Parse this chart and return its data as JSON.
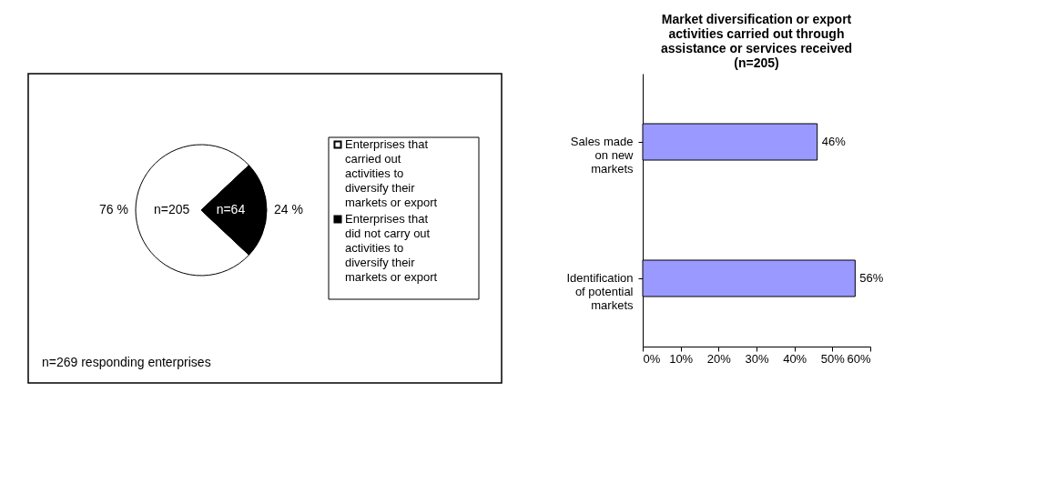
{
  "chart_data": [
    {
      "type": "pie",
      "categories": [
        "Enterprises that carried out activities to diversify their markets or export",
        "Enterprises that did not carry out activities to diversify their markets or export"
      ],
      "values": [
        76,
        24
      ],
      "colors": [
        "#ffffff",
        "#000000"
      ],
      "value_labels": [
        "76 %",
        "24 %"
      ],
      "legend": "right",
      "annotations": [
        {
          "text": "n=205",
          "x": "Enterprises that carried out activities to diversify their markets or export"
        },
        {
          "text": "n=64",
          "x": "Enterprises that did not carry out activities to diversify their markets or export"
        },
        "n=269 responding enterprises"
      ]
    },
    {
      "type": "bar",
      "orientation": "horizontal",
      "title": "Market diversification or export activities carried out through assistance or services received (n=205)",
      "categories": [
        "Sales made on new markets",
        "Identification of potential markets"
      ],
      "values": [
        46,
        56
      ],
      "color": "#9999ff",
      "value_labels": [
        "46%",
        "56%"
      ],
      "xlim": [
        0,
        60
      ],
      "xticks": [
        {
          "value": 0,
          "label": "0%"
        },
        {
          "value": 10,
          "label": "10%"
        },
        {
          "value": 20,
          "label": "20%"
        },
        {
          "value": 30,
          "label": "30%"
        },
        {
          "value": 40,
          "label": "40%"
        },
        {
          "value": 50,
          "label": "50%"
        },
        {
          "value": 60,
          "label": "60%"
        }
      ],
      "grid": false
    }
  ]
}
